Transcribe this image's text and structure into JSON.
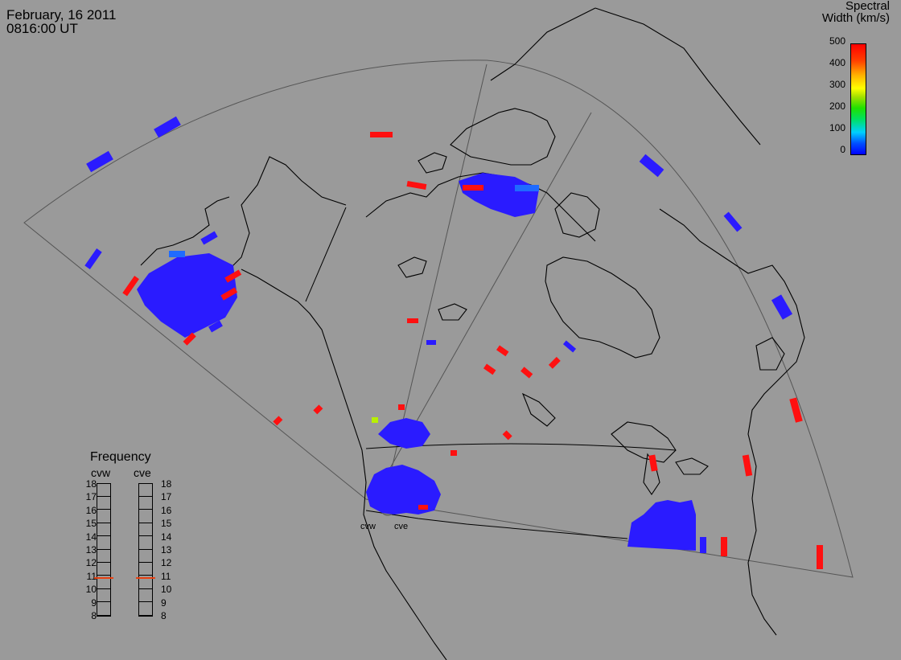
{
  "header": {
    "date": "February, 16 2011",
    "time": "0816:00 UT"
  },
  "colorbar": {
    "title_line1": "Spectral",
    "title_line2": "Width (km/s)",
    "ticks": [
      "500",
      "400",
      "300",
      "200",
      "100",
      "0"
    ]
  },
  "radars": [
    {
      "name": "cvw"
    },
    {
      "name": "cve"
    }
  ],
  "frequency": {
    "title": "Frequency",
    "left_label": "cvw",
    "right_label": "cve",
    "scale": [
      "18",
      "17",
      "16",
      "15",
      "14",
      "13",
      "12",
      "11",
      "10",
      "9",
      "8"
    ],
    "cvw_value": 10.8,
    "cve_value": 10.8
  },
  "colors": {
    "low": "#2a1bff",
    "high": "#ff1010",
    "mid": "#1f6bff",
    "green_yellow": "#b8f000",
    "land_line": "#000000",
    "fov_line": "#555555",
    "background": "#9a9a9a"
  }
}
